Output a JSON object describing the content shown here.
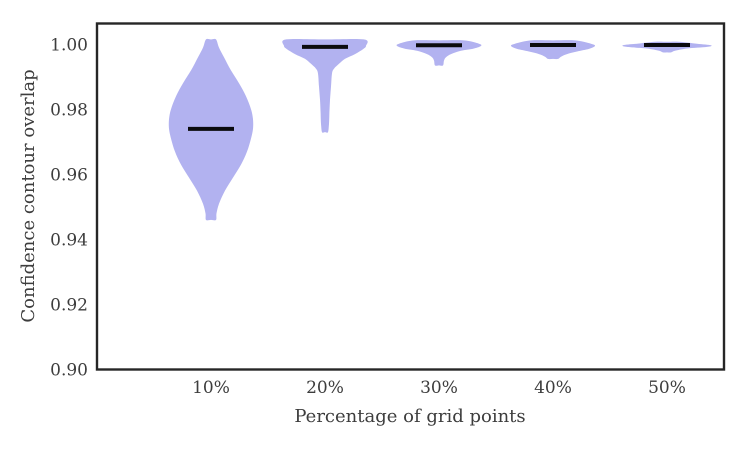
{
  "figure": {
    "background": "#ffffff"
  },
  "chart_data": {
    "type": "violin",
    "title": "",
    "xlabel": "Percentage of grid points",
    "ylabel": "Confidence contour overlap",
    "categories": [
      "10%",
      "20%",
      "30%",
      "40%",
      "50%"
    ],
    "yticks": [
      0.9,
      0.92,
      0.94,
      0.96,
      0.98,
      1.0
    ],
    "ylim": [
      0.9,
      1.0064
    ],
    "grid": false,
    "legend": "none",
    "colors": {
      "violin_fill": "#b2b2f0",
      "median_bar": "#0b0b0e",
      "spine": "#262626",
      "text": "#3d3d3d"
    },
    "series": [
      {
        "label": "10%",
        "median": 0.974,
        "range": [
          0.946,
          1.0015
        ],
        "profile": [
          [
            1.0015,
            0.044
          ],
          [
            0.999,
            0.07
          ],
          [
            0.996,
            0.114
          ],
          [
            0.992,
            0.175
          ],
          [
            0.988,
            0.246
          ],
          [
            0.984,
            0.307
          ],
          [
            0.98,
            0.351
          ],
          [
            0.977,
            0.368
          ],
          [
            0.974,
            0.368
          ],
          [
            0.971,
            0.351
          ],
          [
            0.967,
            0.316
          ],
          [
            0.963,
            0.263
          ],
          [
            0.959,
            0.193
          ],
          [
            0.955,
            0.123
          ],
          [
            0.951,
            0.07
          ],
          [
            0.948,
            0.048
          ],
          [
            0.946,
            0.044
          ]
        ]
      },
      {
        "label": "20%",
        "median": 0.9992,
        "range": [
          0.973,
          1.0015
        ],
        "profile": [
          [
            1.0015,
            0.342
          ],
          [
            0.9995,
            0.36
          ],
          [
            0.9985,
            0.333
          ],
          [
            0.997,
            0.263
          ],
          [
            0.9955,
            0.175
          ],
          [
            0.994,
            0.123
          ],
          [
            0.9925,
            0.079
          ],
          [
            0.991,
            0.061
          ],
          [
            0.987,
            0.053
          ],
          [
            0.983,
            0.044
          ],
          [
            0.979,
            0.039
          ],
          [
            0.9755,
            0.035
          ],
          [
            0.973,
            0.026
          ]
        ]
      },
      {
        "label": "30%",
        "median": 0.9997,
        "range": [
          0.9935,
          1.0012
        ],
        "profile": [
          [
            1.0012,
            0.219
          ],
          [
            1.0002,
            0.351
          ],
          [
            0.9995,
            0.368
          ],
          [
            0.9987,
            0.307
          ],
          [
            0.998,
            0.193
          ],
          [
            0.997,
            0.105
          ],
          [
            0.996,
            0.061
          ],
          [
            0.995,
            0.044
          ],
          [
            0.9935,
            0.035
          ]
        ]
      },
      {
        "label": "40%",
        "median": 0.9998,
        "range": [
          0.9955,
          1.0012
        ],
        "profile": [
          [
            1.0012,
            0.193
          ],
          [
            1.0002,
            0.333
          ],
          [
            0.9995,
            0.368
          ],
          [
            0.9986,
            0.316
          ],
          [
            0.9978,
            0.211
          ],
          [
            0.997,
            0.123
          ],
          [
            0.9962,
            0.07
          ],
          [
            0.9955,
            0.044
          ]
        ]
      },
      {
        "label": "50%",
        "median": 0.9998,
        "range": [
          0.9975,
          1.0008
        ],
        "profile": [
          [
            1.0008,
            0.105
          ],
          [
            1.0002,
            0.263
          ],
          [
            0.9997,
            0.386
          ],
          [
            0.9992,
            0.351
          ],
          [
            0.9987,
            0.175
          ],
          [
            0.998,
            0.07
          ],
          [
            0.9975,
            0.035
          ]
        ]
      }
    ]
  }
}
